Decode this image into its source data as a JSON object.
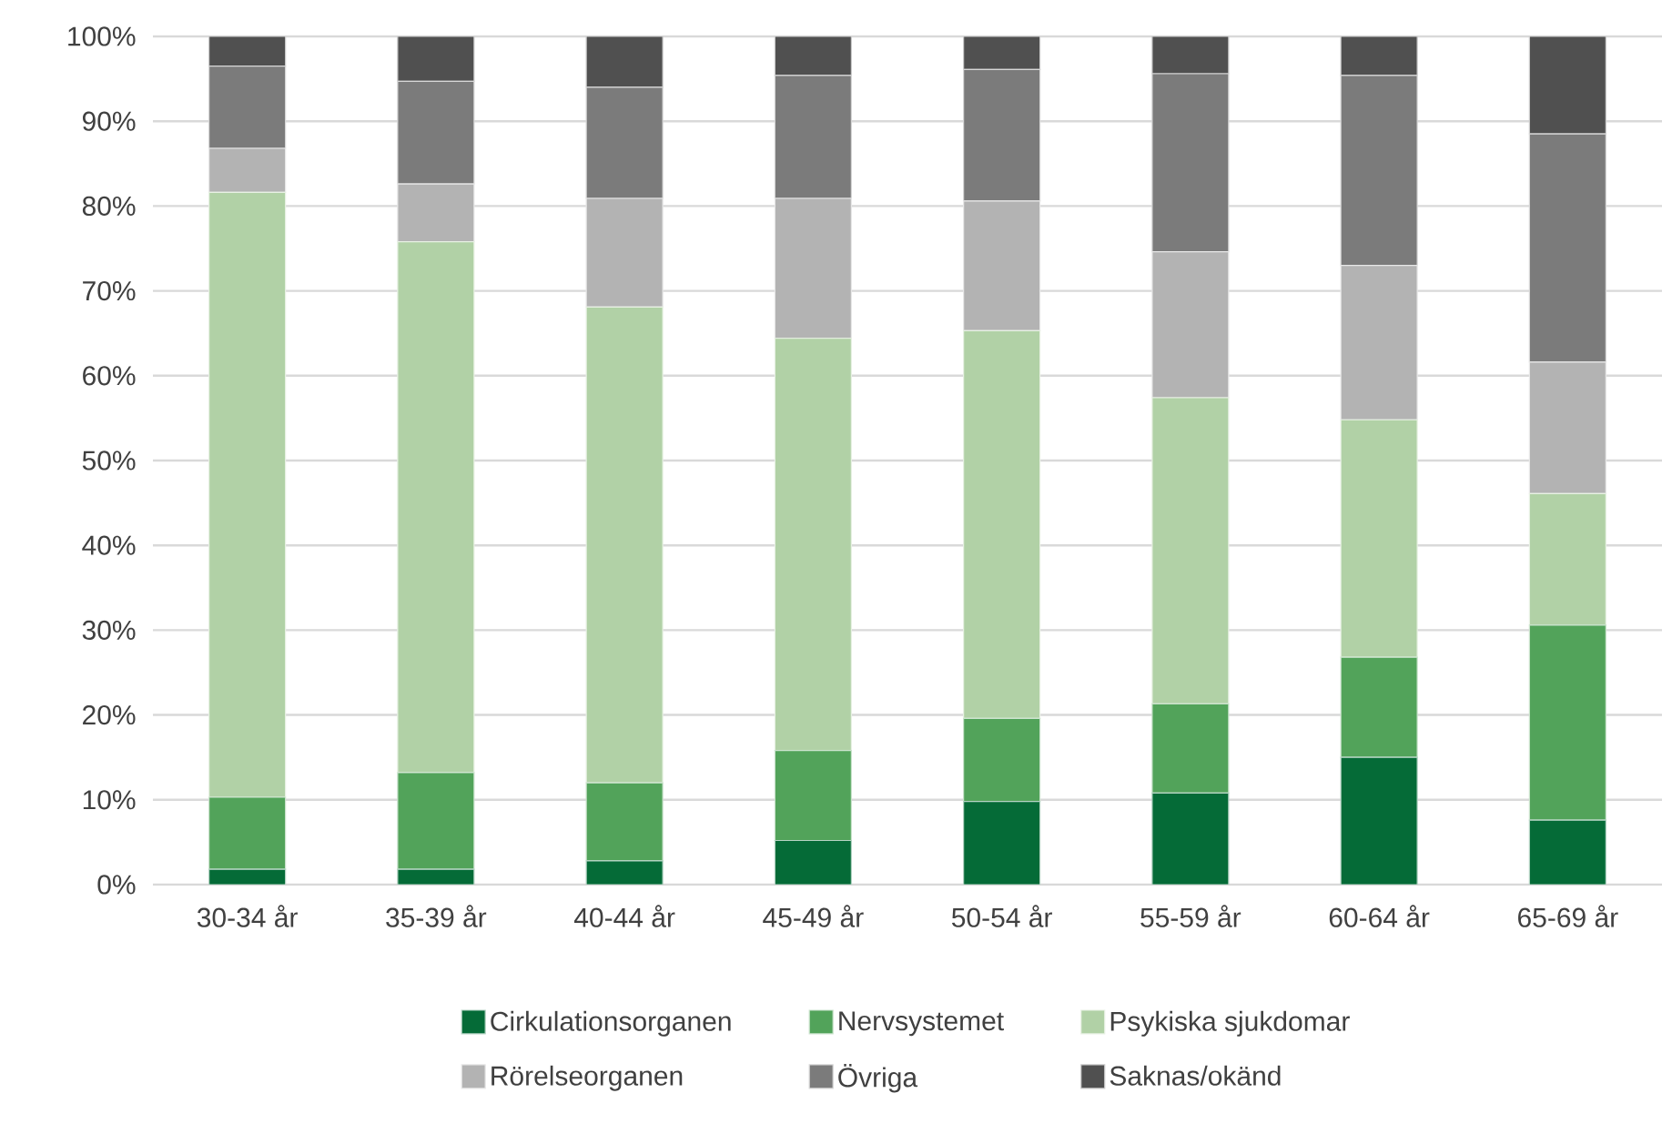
{
  "chart_data": {
    "type": "bar",
    "stacked": true,
    "categories": [
      "30-34 år",
      "35-39 år",
      "40-44 år",
      "45-49 år",
      "50-54 år",
      "55-59 år",
      "60-64 år",
      "65-69 år"
    ],
    "series": [
      {
        "name": "Cirkulationsorganen",
        "color": "#056b37",
        "values": [
          1.8,
          1.8,
          2.8,
          5.2,
          9.8,
          10.8,
          15.0,
          7.6
        ]
      },
      {
        "name": "Nervsystemet",
        "color": "#52a35a",
        "values": [
          8.5,
          11.4,
          9.2,
          10.6,
          9.8,
          10.5,
          11.8,
          23.0
        ]
      },
      {
        "name": "Psykiska sjukdomar",
        "color": "#b1d1a6",
        "values": [
          71.3,
          62.6,
          56.1,
          48.6,
          45.7,
          36.1,
          28.0,
          15.5
        ]
      },
      {
        "name": "Rörelseorganen",
        "color": "#b3b3b3",
        "values": [
          5.2,
          6.8,
          12.8,
          16.5,
          15.3,
          17.2,
          18.2,
          15.5
        ]
      },
      {
        "name": "Övriga",
        "color": "#7b7b7b",
        "values": [
          9.7,
          12.1,
          13.1,
          14.5,
          15.5,
          21.0,
          22.4,
          26.9
        ]
      },
      {
        "name": "Saknas/okänd",
        "color": "#505050",
        "values": [
          3.5,
          5.3,
          6.0,
          4.6,
          3.9,
          4.4,
          4.6,
          11.5
        ]
      }
    ],
    "ylim": [
      0,
      100
    ],
    "yticks": [
      {
        "value": 0,
        "label": "0%"
      },
      {
        "value": 10,
        "label": "10%"
      },
      {
        "value": 20,
        "label": "20%"
      },
      {
        "value": 30,
        "label": "30%"
      },
      {
        "value": 40,
        "label": "40%"
      },
      {
        "value": 50,
        "label": "50%"
      },
      {
        "value": 60,
        "label": "60%"
      },
      {
        "value": 70,
        "label": "70%"
      },
      {
        "value": 80,
        "label": "80%"
      },
      {
        "value": 90,
        "label": "90%"
      },
      {
        "value": 100,
        "label": "100%"
      }
    ],
    "grid": "y",
    "legend": "bottom"
  }
}
